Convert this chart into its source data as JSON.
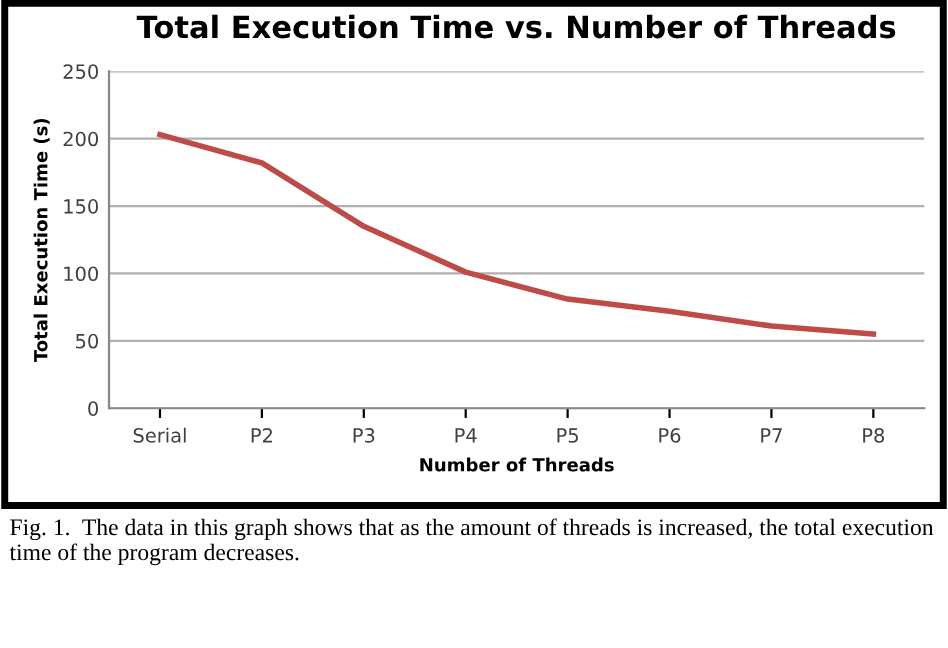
{
  "chart_data": {
    "type": "line",
    "title": "Total Execution Time vs. Number of Threads",
    "xlabel": "Number of Threads",
    "ylabel": "Total Execution Time (s)",
    "categories": [
      "Serial",
      "P2",
      "P3",
      "P4",
      "P5",
      "P6",
      "P7",
      "P8"
    ],
    "series": [
      {
        "color": "#be4b48",
        "values": [
          203,
          182,
          135,
          101,
          81,
          72,
          61,
          55
        ]
      }
    ],
    "ylim": [
      0,
      250
    ],
    "yticks": [
      0,
      50,
      100,
      150,
      200,
      250
    ],
    "grid": "y",
    "marker": "none",
    "line_style": "solid",
    "annotations": [
      "Fig. 1.  The data in this graph shows that as the amount of threads is increased, the total execution time of the program decreases."
    ]
  }
}
